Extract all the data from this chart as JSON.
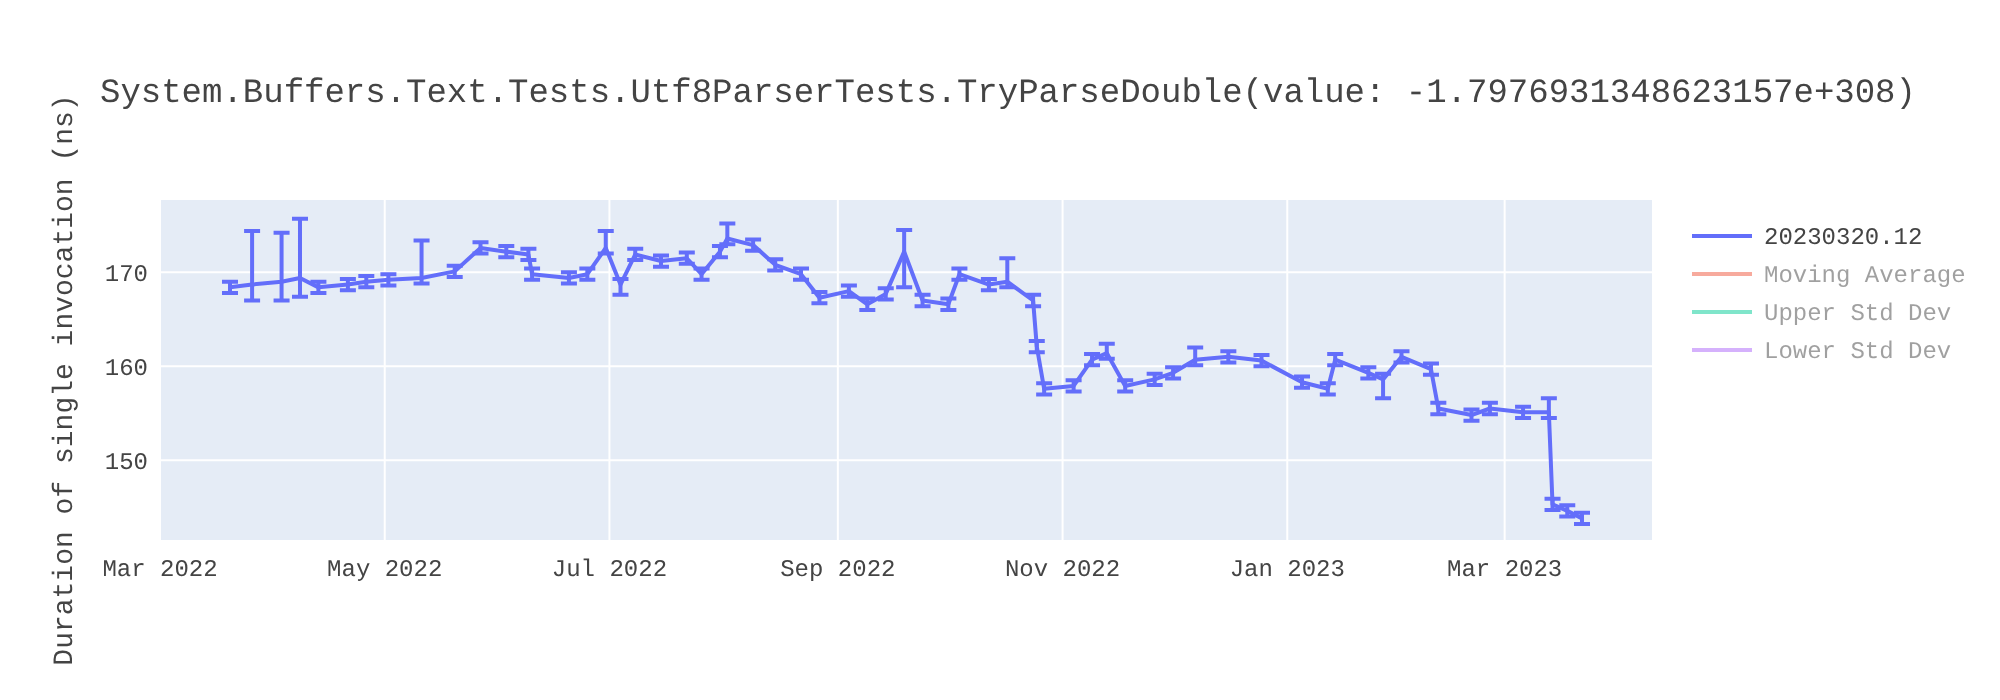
{
  "chart_data": {
    "type": "line",
    "title": "System.Buffers.Text.Tests.Utf8ParserTests.TryParseDouble(value: -1.7976931348623157e+308)",
    "ylabel": "Duration of single invocation (ns)",
    "xlim": [
      "2022-03-01",
      "2023-04-10"
    ],
    "ylim": [
      141.5,
      177.7
    ],
    "xticks": [
      {
        "value": "2022-03-01",
        "label": "Mar 2022"
      },
      {
        "value": "2022-05-01",
        "label": "May 2022"
      },
      {
        "value": "2022-07-01",
        "label": "Jul 2022"
      },
      {
        "value": "2022-09-01",
        "label": "Sep 2022"
      },
      {
        "value": "2022-11-01",
        "label": "Nov 2022"
      },
      {
        "value": "2023-01-01",
        "label": "Jan 2023"
      },
      {
        "value": "2023-03-01",
        "label": "Mar 2023"
      }
    ],
    "yticks": [
      150,
      160,
      170
    ],
    "grid": true,
    "legend": "top right",
    "series": [
      {
        "name": "20230320.12",
        "color": "#636efa",
        "x": [
          "2022-03-20",
          "2022-03-26",
          "2022-04-03",
          "2022-04-08",
          "2022-04-13",
          "2022-04-21",
          "2022-04-26",
          "2022-05-02",
          "2022-05-11",
          "2022-05-20",
          "2022-05-27",
          "2022-06-03",
          "2022-06-09",
          "2022-06-10",
          "2022-06-20",
          "2022-06-25",
          "2022-06-30",
          "2022-07-04",
          "2022-07-08",
          "2022-07-15",
          "2022-07-22",
          "2022-07-26",
          "2022-07-31",
          "2022-08-02",
          "2022-08-09",
          "2022-08-15",
          "2022-08-22",
          "2022-08-27",
          "2022-09-04",
          "2022-09-09",
          "2022-09-14",
          "2022-09-19",
          "2022-09-24",
          "2022-10-01",
          "2022-10-04",
          "2022-10-12",
          "2022-10-17",
          "2022-10-24",
          "2022-10-25",
          "2022-10-27",
          "2022-11-04",
          "2022-11-09",
          "2022-11-13",
          "2022-11-18",
          "2022-11-26",
          "2022-12-01",
          "2022-12-07",
          "2022-12-16",
          "2022-12-25",
          "2023-01-05",
          "2023-01-12",
          "2023-01-14",
          "2023-01-23",
          "2023-01-27",
          "2023-02-01",
          "2023-02-09",
          "2023-02-11",
          "2023-02-20",
          "2023-02-25",
          "2023-03-06",
          "2023-03-13",
          "2023-03-14",
          "2023-03-18",
          "2023-03-22"
        ],
        "values": [
          168.4,
          168.7,
          169,
          169.4,
          168.4,
          168.7,
          169,
          169.2,
          169.4,
          170.1,
          172.6,
          172.2,
          171.9,
          169.8,
          169.4,
          169.8,
          172.6,
          168.7,
          171.9,
          171.2,
          171.5,
          169.8,
          172.2,
          173.6,
          172.9,
          170.8,
          169.8,
          167.3,
          168,
          166.6,
          167.7,
          172.2,
          167,
          166.6,
          169.8,
          168.7,
          169,
          167,
          162.1,
          157.6,
          157.9,
          160.7,
          161.4,
          157.9,
          158.6,
          159.3,
          160.7,
          161,
          160.6,
          158.3,
          157.6,
          160.7,
          159.3,
          158.6,
          161,
          159.7,
          155.5,
          154.8,
          155.5,
          155.1,
          155.1,
          145.3,
          144.6,
          143.8
        ],
        "errors": [
          0.6,
          [
            167,
            174.4
          ],
          [
            167,
            174.2
          ],
          [
            167.4,
            175.7
          ],
          0.6,
          0.6,
          0.6,
          0.6,
          [
            168.8,
            173.4
          ],
          0.6,
          0.6,
          0.6,
          0.6,
          0.6,
          0.6,
          0.6,
          [
            172,
            174.4
          ],
          [
            167.6,
            169.3
          ],
          0.6,
          0.6,
          0.6,
          0.6,
          0.6,
          [
            173,
            175.2
          ],
          0.6,
          0.6,
          0.6,
          0.6,
          0.6,
          0.6,
          0.6,
          [
            168.4,
            174.5
          ],
          0.6,
          0.6,
          0.6,
          0.6,
          [
            168.4,
            171.5
          ],
          0.6,
          0.6,
          0.6,
          0.6,
          0.6,
          [
            160.8,
            162.4
          ],
          0.6,
          0.6,
          0.6,
          [
            160.1,
            162
          ],
          0.6,
          0.6,
          0.6,
          0.6,
          0.6,
          0.6,
          [
            156.6,
            159.2
          ],
          0.6,
          0.6,
          0.6,
          0.6,
          0.6,
          0.6,
          [
            154.5,
            156.6
          ],
          0.6,
          0.6,
          0.6
        ]
      },
      {
        "name": "Moving Average",
        "color": "#f7aa9d"
      },
      {
        "name": "Upper Std Dev",
        "color": "#7fe5ca"
      },
      {
        "name": "Lower Std Dev",
        "color": "#d5b1fc"
      }
    ]
  }
}
